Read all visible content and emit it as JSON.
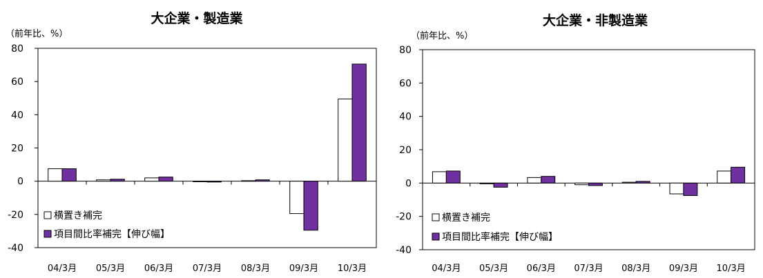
{
  "colors": {
    "series1_fill": "#ffffff",
    "series2_fill": "#7030a0",
    "stroke": "#000000"
  },
  "chart_data": [
    {
      "type": "bar",
      "title": "大企業・製造業",
      "unit_label": "（前年比、%）",
      "categories": [
        "04/3月",
        "05/3月",
        "06/3月",
        "07/3月",
        "08/3月",
        "09/3月",
        "10/3月"
      ],
      "ylim": [
        -40,
        80
      ],
      "yticks": [
        -40,
        -20,
        0,
        20,
        40,
        60,
        80
      ],
      "grid": false,
      "legend_position": "bottom-left",
      "series": [
        {
          "name": "横置き補完",
          "values": [
            7.5,
            0.8,
            2,
            -0.3,
            0.3,
            -19.5,
            49.5
          ]
        },
        {
          "name": "項目間比率補完【伸び幅】",
          "values": [
            7.5,
            1.2,
            2.5,
            -0.5,
            0.8,
            -29.5,
            70.5
          ]
        }
      ]
    },
    {
      "type": "bar",
      "title": "大企業・非製造業",
      "unit_label": "（前年比、%）",
      "categories": [
        "04/3月",
        "05/3月",
        "06/3月",
        "07/3月",
        "08/3月",
        "09/3月",
        "10/3月"
      ],
      "ylim": [
        -40,
        80
      ],
      "yticks": [
        -40,
        -20,
        0,
        20,
        40,
        60,
        80
      ],
      "grid": false,
      "legend_position": "bottom-left",
      "series": [
        {
          "name": "横置き補完",
          "values": [
            6.8,
            -0.5,
            3.3,
            -1,
            0.5,
            -6.5,
            7.2
          ]
        },
        {
          "name": "項目間比率補完【伸び幅】",
          "values": [
            7.2,
            -2.5,
            4,
            -1.5,
            1,
            -7.5,
            9.5
          ]
        }
      ]
    }
  ]
}
